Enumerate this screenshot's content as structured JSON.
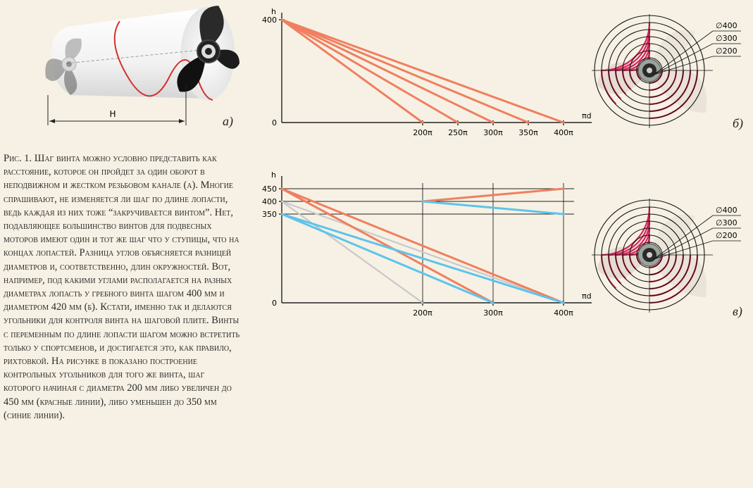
{
  "figure": {
    "panel_a_label": "а)",
    "panel_b_label": "б)",
    "panel_c_label": "в)",
    "dimension_label": "H",
    "caption": "Рис. 1. Шаг винта можно условно представить как расстояние, которое он пройдет за один оборот в неподвижном и жестком резьбовом канале (а). Многие спрашивают, не изменяется ли шаг по длине лопасти, ведь каждая из них тоже “закручивается винтом”. Нет, подавляющее большинство винтов для подвесных моторов имеют один и тот же шаг что у ступицы, что на концах лопастей. Разница углов объясняется разницей диаметров и, соответственно, длин окружностей. Вот, например, под какими углами располагается на разных диаметрах лопасть у гребного винта шагом 400 мм и диаметром 420 мм (б). Кстати, именно так и делаются угольники для контроля винта на шаговой плите. Винты с переменным по длине лопасти шагом можно встретить только у спортсменов, и достигается это, как правило, рихтовкой. На рисунке в показано построение контрольных угольников для того же винта, шаг которого начиная с диаметра 200 мм либо увеличен до 450 мм (красные линии), либо уменьшен до 350 мм (синие линии)."
  },
  "colors": {
    "red": "#f07f5f",
    "blue": "#5cc4ec",
    "gray": "#c9c9c9",
    "circle_red": "#d8245a"
  },
  "diameter_labels": [
    "∅400",
    "∅300",
    "∅200"
  ],
  "chart_data": [
    {
      "type": "line",
      "ylabel": "h",
      "xlabel": "πd",
      "y_ticks": [
        "400",
        "0"
      ],
      "x_ticks": [
        "200π",
        "250π",
        "300π",
        "350π",
        "400π"
      ],
      "series": [
        {
          "color": "red",
          "points": [
            [
              0,
              400
            ],
            [
              200,
              0
            ]
          ]
        },
        {
          "color": "red",
          "points": [
            [
              0,
              400
            ],
            [
              250,
              0
            ]
          ]
        },
        {
          "color": "red",
          "points": [
            [
              0,
              400
            ],
            [
              300,
              0
            ]
          ]
        },
        {
          "color": "red",
          "points": [
            [
              0,
              400
            ],
            [
              350,
              0
            ]
          ]
        },
        {
          "color": "red",
          "points": [
            [
              0,
              400
            ],
            [
              400,
              0
            ]
          ]
        }
      ]
    },
    {
      "type": "line",
      "ylabel": "h",
      "xlabel": "πd",
      "y_ticks": [
        "450",
        "400",
        "350",
        "0"
      ],
      "x_ticks": [
        "200π",
        "300π",
        "400π"
      ],
      "series": [
        {
          "color": "gray",
          "points": [
            [
              0,
              400
            ],
            [
              200,
              0
            ]
          ]
        },
        {
          "color": "gray",
          "points": [
            [
              0,
              400
            ],
            [
              400,
              0
            ]
          ]
        },
        {
          "color": "red",
          "points": [
            [
              0,
              450
            ],
            [
              300,
              0
            ]
          ]
        },
        {
          "color": "red",
          "points": [
            [
              0,
              450
            ],
            [
              400,
              0
            ]
          ]
        },
        {
          "color": "red",
          "points": [
            [
              200,
              400
            ],
            [
              400,
              450
            ]
          ]
        },
        {
          "color": "blue",
          "points": [
            [
              0,
              350
            ],
            [
              300,
              0
            ]
          ]
        },
        {
          "color": "blue",
          "points": [
            [
              0,
              350
            ],
            [
              400,
              0
            ]
          ]
        },
        {
          "color": "blue",
          "points": [
            [
              200,
              400
            ],
            [
              400,
              350
            ]
          ]
        }
      ]
    }
  ]
}
